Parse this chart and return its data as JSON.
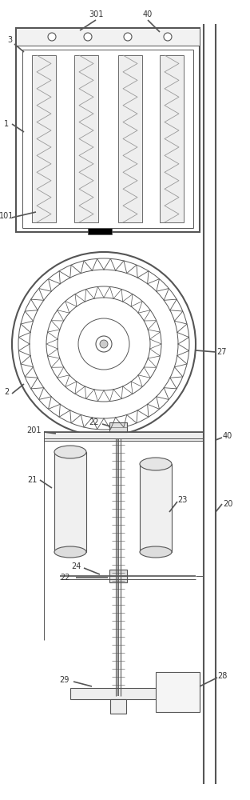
{
  "fig_width": 3.13,
  "fig_height": 10.0,
  "dpi": 100,
  "bg_color": "#ffffff",
  "lc": "#555555",
  "lc_dark": "#333333",
  "lc_text": "#333333"
}
